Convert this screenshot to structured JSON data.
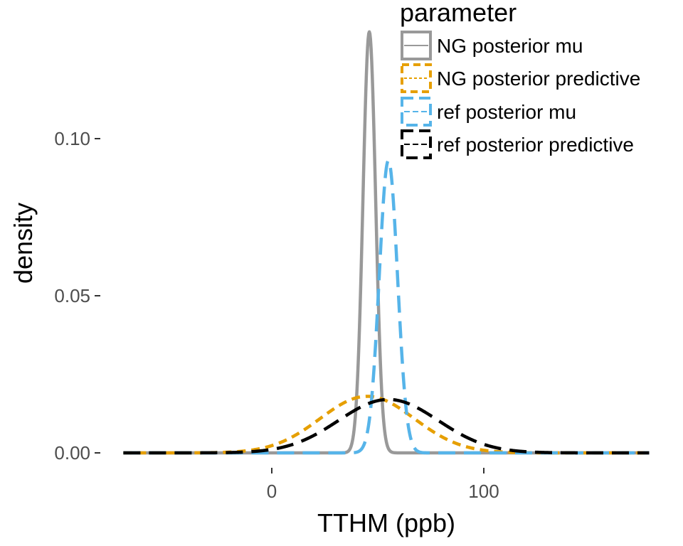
{
  "chart_data": {
    "type": "line",
    "title": "",
    "xlabel": "TTHM (ppb)",
    "ylabel": "density",
    "xlim": [
      -70,
      178
    ],
    "ylim": [
      0,
      0.135
    ],
    "x_ticks": [
      0,
      100
    ],
    "x_tick_labels": [
      "0",
      "100"
    ],
    "y_ticks": [
      0,
      0.05,
      0.1
    ],
    "y_tick_labels": [
      "0.00",
      "0.05",
      "0.10"
    ],
    "grid": false,
    "legend": {
      "title": "parameter",
      "position": "top-right",
      "entries": [
        "NG posterior mu",
        "NG posterior predictive",
        "ref posterior mu",
        "ref posterior predictive"
      ]
    },
    "series": [
      {
        "name": "NG posterior mu",
        "distribution": "normal",
        "mean": 46,
        "sd": 2.98,
        "peak_density": 0.134,
        "color": "#999999",
        "dash": "solid"
      },
      {
        "name": "NG posterior predictive",
        "distribution": "normal",
        "mean": 45,
        "sd": 22.2,
        "peak_density": 0.018,
        "color": "#E69F00",
        "dash": "dashed"
      },
      {
        "name": "ref posterior mu",
        "distribution": "normal",
        "mean": 55,
        "sd": 4.3,
        "peak_density": 0.093,
        "color": "#56B4E9",
        "dash": "longdash"
      },
      {
        "name": "ref posterior predictive",
        "distribution": "normal",
        "mean": 55,
        "sd": 23.5,
        "peak_density": 0.017,
        "color": "#000000",
        "dash": "longdash"
      }
    ]
  }
}
